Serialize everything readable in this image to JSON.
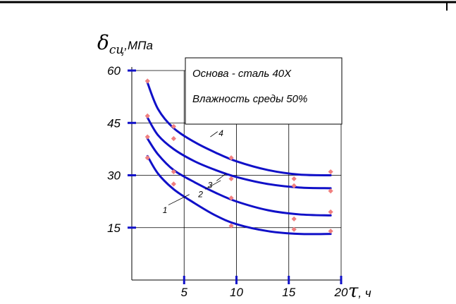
{
  "chart_data": {
    "type": "line",
    "y_title_symbol": "δ",
    "y_title_subscript": "сц",
    "y_title_unit": ",МПа",
    "x_title_symbol": "τ",
    "x_title_unit": ", ч",
    "notes": [
      "Основа - сталь 40Х",
      "Влажность среды 50%"
    ],
    "xlim": [
      0,
      20
    ],
    "ylim": [
      0,
      60
    ],
    "x_ticks": [
      5,
      10,
      15,
      20
    ],
    "y_ticks": [
      15,
      30,
      45,
      60
    ],
    "grid": true,
    "colors": {
      "curve": "#1010c8",
      "marker": "#f08080",
      "axis": "#1010c8",
      "grid": "#000000"
    },
    "series": [
      {
        "label": "1",
        "curve": [
          [
            1.5,
            35.5
          ],
          [
            2.5,
            30.5
          ],
          [
            4,
            26
          ],
          [
            6,
            22
          ],
          [
            8,
            18.5
          ],
          [
            10,
            16
          ],
          [
            13,
            14
          ],
          [
            16,
            13.2
          ],
          [
            19,
            13.2
          ]
        ],
        "points": [
          [
            1.5,
            35
          ],
          [
            4,
            27.5
          ],
          [
            9.5,
            15.5
          ],
          [
            15.5,
            14.5
          ],
          [
            19,
            14
          ]
        ]
      },
      {
        "label": "2",
        "curve": [
          [
            1.5,
            40.5
          ],
          [
            2.5,
            36
          ],
          [
            4,
            31.5
          ],
          [
            6,
            28
          ],
          [
            8,
            25
          ],
          [
            10,
            22.5
          ],
          [
            13,
            20
          ],
          [
            16,
            18.8
          ],
          [
            19,
            18.5
          ]
        ],
        "points": [
          [
            1.5,
            41
          ],
          [
            4,
            31
          ],
          [
            9.5,
            23.5
          ],
          [
            15.5,
            17.5
          ],
          [
            19,
            19.5
          ]
        ]
      },
      {
        "label": "3",
        "curve": [
          [
            1.5,
            46.5
          ],
          [
            2.5,
            41.5
          ],
          [
            4,
            37.5
          ],
          [
            6,
            34
          ],
          [
            8,
            31.5
          ],
          [
            10,
            29.5
          ],
          [
            13,
            27.5
          ],
          [
            16,
            26.5
          ],
          [
            19,
            26.3
          ]
        ],
        "points": [
          [
            1.5,
            47
          ],
          [
            4,
            40.5
          ],
          [
            9.5,
            29
          ],
          [
            15.5,
            27
          ],
          [
            19,
            25.5
          ]
        ]
      },
      {
        "label": "4",
        "curve": [
          [
            1.5,
            56.5
          ],
          [
            2.5,
            49
          ],
          [
            4,
            43.5
          ],
          [
            6,
            39.5
          ],
          [
            8,
            36.5
          ],
          [
            10,
            34
          ],
          [
            13,
            31.5
          ],
          [
            16,
            30.2
          ],
          [
            19,
            30
          ]
        ],
        "points": [
          [
            1.5,
            57
          ],
          [
            4,
            44
          ],
          [
            9.5,
            35
          ],
          [
            15.5,
            29
          ],
          [
            19,
            31
          ]
        ]
      }
    ]
  }
}
